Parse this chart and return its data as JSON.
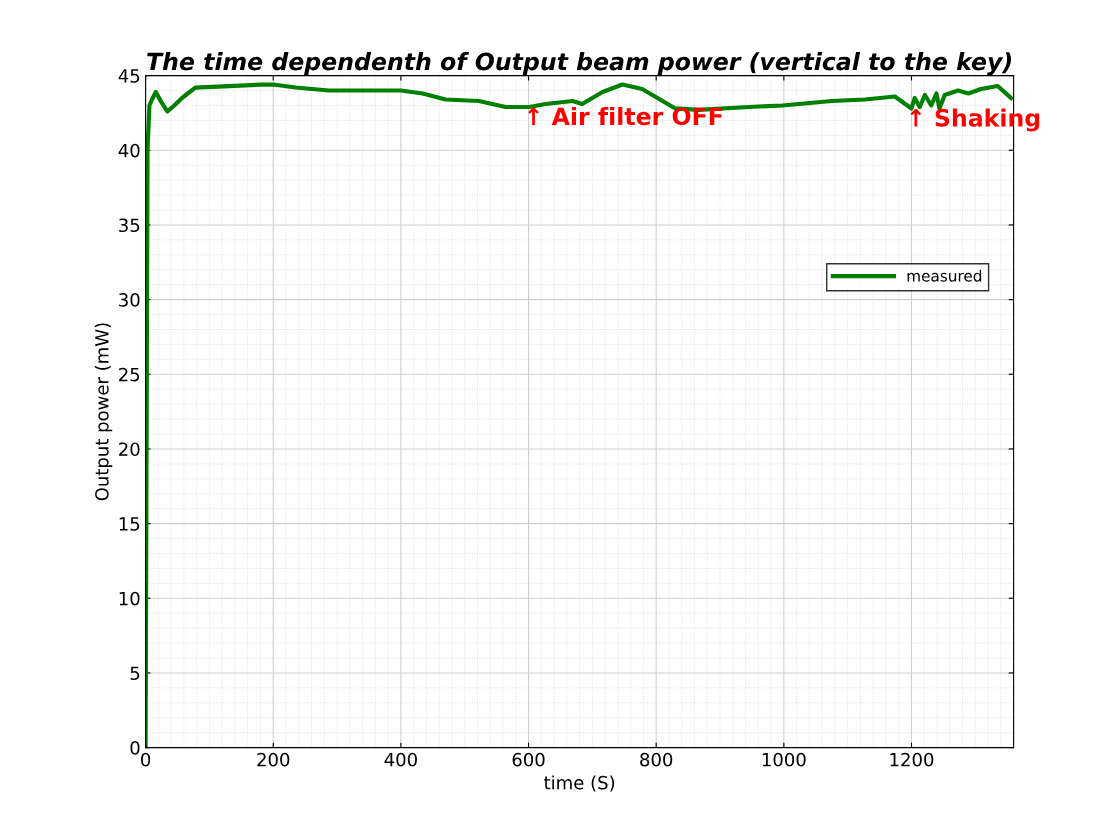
{
  "chart_data": {
    "type": "line",
    "title": "The time dependenth of Output beam power (vertical to the key)",
    "xlabel": "time (S)",
    "ylabel": "Output power (mW)",
    "x": [
      0,
      3,
      6,
      10,
      16,
      25,
      34,
      45,
      57,
      78,
      131,
      183,
      200,
      235,
      287,
      340,
      400,
      434,
      470,
      522,
      564,
      601,
      627,
      669,
      684,
      716,
      747,
      778,
      830,
      867,
      945,
      998,
      1075,
      1127,
      1174,
      1200,
      1205,
      1213,
      1221,
      1231,
      1239,
      1244,
      1252,
      1273,
      1289,
      1309,
      1335,
      1356
    ],
    "series": [
      {
        "name": "measured",
        "color": "#008000",
        "values": [
          0,
          40,
          43.0,
          43.4,
          43.9,
          43.2,
          42.6,
          43.0,
          43.5,
          44.2,
          44.3,
          44.4,
          44.4,
          44.2,
          44.0,
          44.0,
          44.0,
          43.8,
          43.4,
          43.3,
          42.9,
          42.9,
          43.1,
          43.3,
          43.1,
          43.9,
          44.4,
          44.1,
          42.8,
          42.7,
          42.9,
          43.0,
          43.3,
          43.4,
          43.6,
          42.8,
          43.5,
          42.9,
          43.7,
          43.0,
          43.8,
          42.8,
          43.7,
          44.0,
          43.8,
          44.1,
          44.3,
          43.5
        ]
      }
    ],
    "annotations": [
      {
        "text": "↑ Air filter OFF",
        "x": 601,
        "y": 42.9
      },
      {
        "text": "↑ Shaking",
        "x": 1200,
        "y": 42.8
      }
    ],
    "xlim": [
      0,
      1360
    ],
    "xticks": [
      0,
      200,
      400,
      600,
      800,
      1000,
      1200
    ],
    "ylim": [
      0,
      45
    ],
    "yticks": [
      0,
      5,
      10,
      15,
      20,
      25,
      30,
      35,
      40,
      45
    ],
    "grid": true,
    "legend": "right",
    "line_style": "solid",
    "marker": "none"
  }
}
